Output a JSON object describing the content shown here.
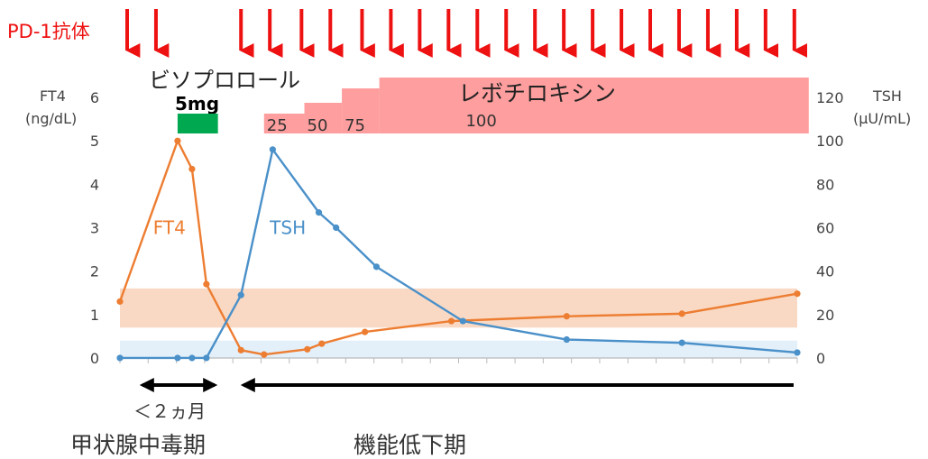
{
  "chart_data": {
    "type": "line",
    "title": "",
    "xlabel": "",
    "x_ticks": 24,
    "x": [
      0,
      2,
      2.5,
      3,
      3.5,
      4,
      4.2,
      4.5,
      5,
      5.5,
      7,
      7.5,
      8,
      9.5,
      11.5,
      15.5,
      19.5,
      23.5
    ],
    "left_axis": {
      "label_line1": "FT4",
      "label_line2": "(ng/dL)",
      "ylim": [
        0,
        6
      ],
      "ticks": [
        "0",
        "1",
        "2",
        "3",
        "4",
        "5",
        "6"
      ]
    },
    "right_axis": {
      "label_line1": "TSH",
      "label_line2": "(μU/mL)",
      "ylim": [
        0,
        120
      ],
      "ticks": [
        "0",
        "20",
        "40",
        "60",
        "80",
        "100",
        "120"
      ]
    },
    "series": [
      {
        "name": "FT4",
        "axis": "left",
        "color": "#ED7D31",
        "points": [
          [
            0,
            1.3
          ],
          [
            2,
            5.0
          ],
          [
            2.5,
            4.35
          ],
          [
            3,
            1.7
          ],
          [
            4.2,
            0.18
          ],
          [
            5,
            0.08
          ],
          [
            6.5,
            0.2
          ],
          [
            7,
            0.33
          ],
          [
            8.5,
            0.6
          ],
          [
            11.5,
            0.85
          ],
          [
            15.5,
            0.96
          ],
          [
            19.5,
            1.02
          ],
          [
            23.5,
            1.48
          ]
        ]
      },
      {
        "name": "TSH",
        "axis": "right",
        "color": "#4A90C9",
        "points": [
          [
            0,
            0.02
          ],
          [
            2,
            0.01
          ],
          [
            2.5,
            0.01
          ],
          [
            3,
            0.02
          ],
          [
            4.2,
            29
          ],
          [
            5.3,
            96
          ],
          [
            6.9,
            67
          ],
          [
            7.5,
            60
          ],
          [
            8.9,
            42
          ],
          [
            11.9,
            17
          ],
          [
            15.5,
            8.5
          ],
          [
            19.5,
            7
          ],
          [
            23.5,
            2.5
          ]
        ]
      }
    ],
    "reference_bands": [
      {
        "axis": "left",
        "range": [
          0.7,
          1.6
        ],
        "color": "#F9D9C4"
      },
      {
        "axis": "right",
        "range": [
          0,
          8
        ],
        "color": "#E3EFF9"
      }
    ]
  },
  "drug_label": "PD-1抗体",
  "drug_arrows_x": [
    0.25,
    1.25,
    4.2,
    5.2,
    6.3,
    7.3,
    8.4,
    9.4,
    10.4,
    11.4,
    12.4,
    13.4,
    14.4,
    15.4,
    16.4,
    17.4,
    18.4,
    19.4,
    20.4,
    21.4,
    22.4,
    23.4
  ],
  "bisoprolol": {
    "label": "ビソプロロール",
    "dose": "5mg",
    "range_x": [
      2,
      3.4
    ],
    "color": "#00A94F"
  },
  "levothyroxine": {
    "label": "レボチロキシン",
    "color": "#FF9E9E",
    "steps": [
      {
        "dose": "25",
        "range_x": [
          5,
          6.4
        ]
      },
      {
        "dose": "50",
        "range_x": [
          6.4,
          7.7
        ]
      },
      {
        "dose": "75",
        "range_x": [
          7.7,
          9
        ]
      },
      {
        "dose": "100",
        "range_x": [
          9,
          23.9
        ]
      }
    ]
  },
  "periods": {
    "thyrotoxic": {
      "duration": "＜２ヵ月",
      "label": "甲状腺中毒期"
    },
    "hypothyroid": {
      "label": "機能低下期"
    }
  }
}
